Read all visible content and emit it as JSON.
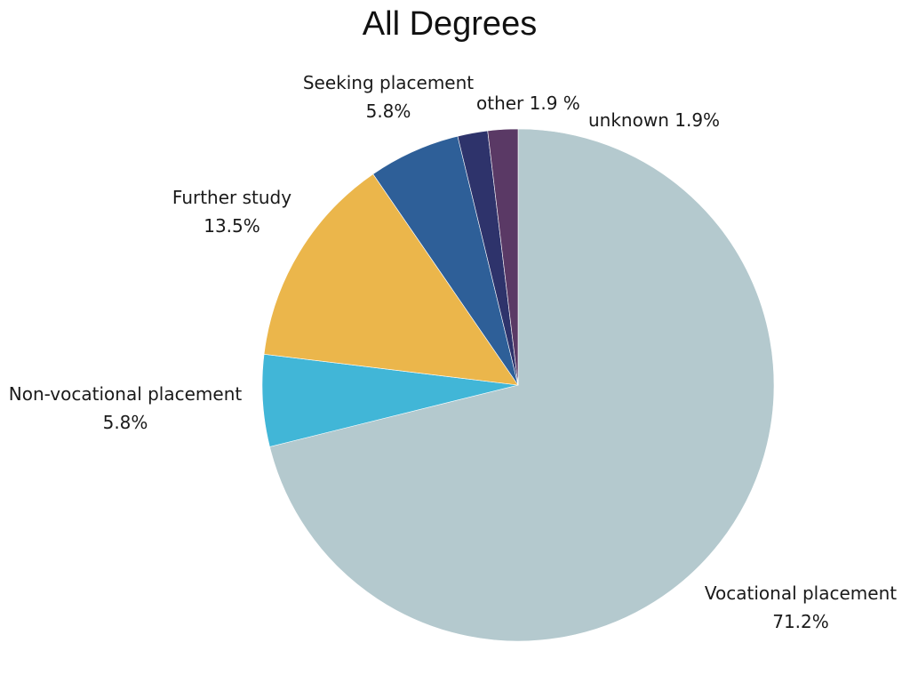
{
  "chart_data": {
    "type": "pie",
    "title": "All Degrees",
    "start_angle_deg": 90,
    "direction": "clockwise",
    "slices": [
      {
        "label": "Vocational placement",
        "value": 71.2,
        "value_label": "71.2%",
        "color": "#b4c9ce"
      },
      {
        "label": "Non-vocational placement",
        "value": 5.8,
        "value_label": "5.8%",
        "color": "#41b6d7"
      },
      {
        "label": "Further study",
        "value": 13.5,
        "value_label": "13.5%",
        "color": "#ebb64b"
      },
      {
        "label": "Seeking placement",
        "value": 5.8,
        "value_label": "5.8%",
        "color": "#2e5f98"
      },
      {
        "label": "other",
        "value": 1.9,
        "value_label": "1.9 %",
        "color": "#2e336b"
      },
      {
        "label": "unknown",
        "value": 1.9,
        "value_label": "1.9%",
        "color": "#5a3965"
      }
    ]
  }
}
